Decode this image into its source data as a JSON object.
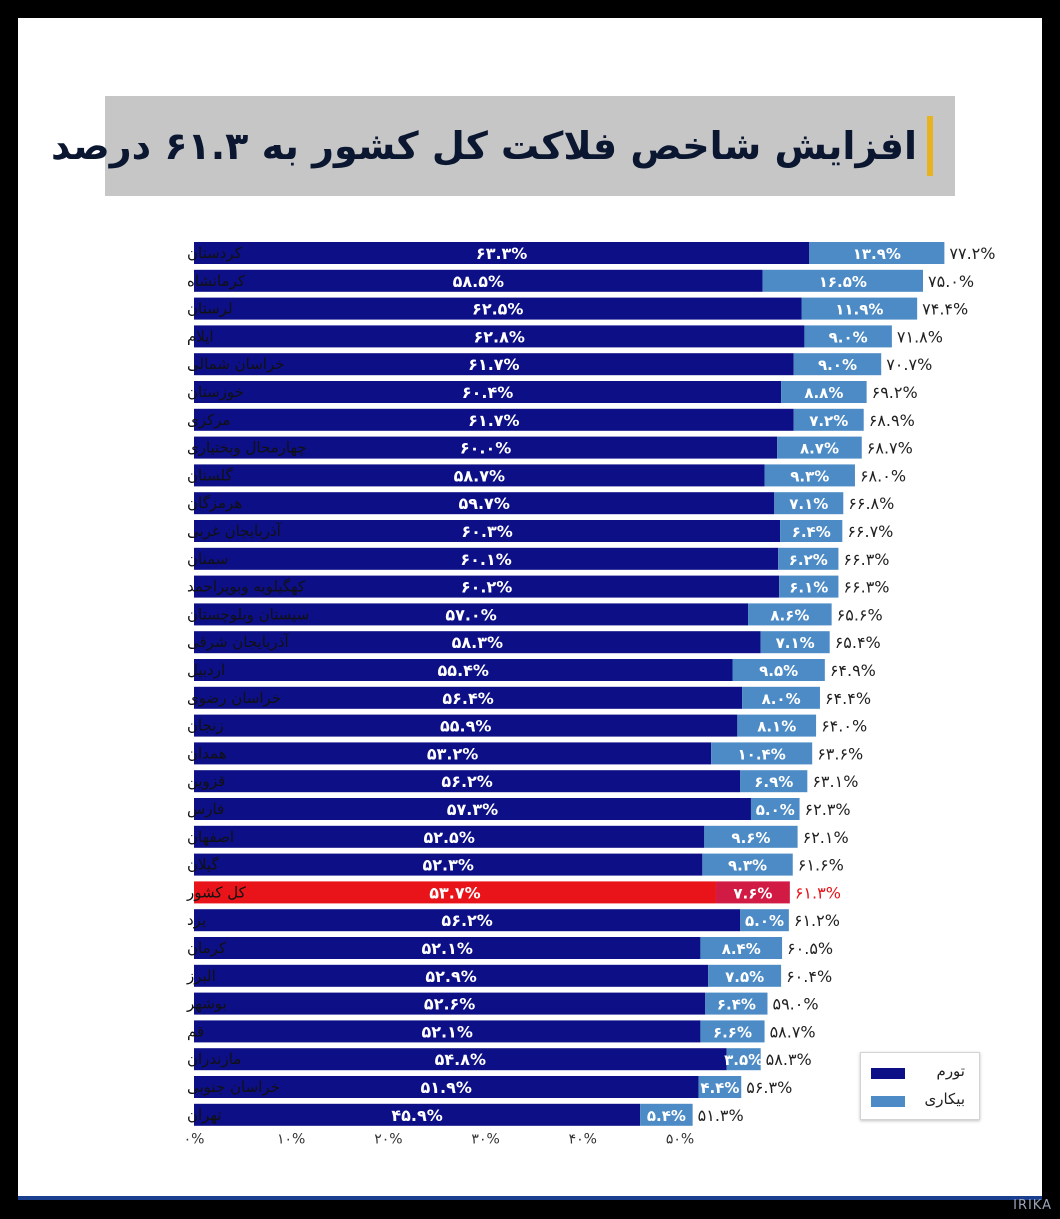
{
  "title": "افزایش شاخص فلاکت کل کشور به ۶۱.۳ درصد",
  "watermark": "IRIKA",
  "colors": {
    "inflation": "#0d0f86",
    "unemployment": "#4d8bc6",
    "highlight_inflation": "#e8141a",
    "highlight_unemployment": "#d11b45",
    "highlight_total": "#e8141a",
    "title_accent": "#e7b321",
    "title_bg": "#c6c6c6"
  },
  "chart_data": {
    "type": "bar",
    "orientation": "horizontal",
    "stacked": true,
    "highlight_category": "کل کشور",
    "categories": [
      "کردستان",
      "کرمانشاه",
      "لرستان",
      "ایلام",
      "خراسان شمالی",
      "خوزستان",
      "مرکزی",
      "چهارمحال وبختیاری",
      "گلستان",
      "هرمزگان",
      "آذربایجان غربی",
      "سمنان",
      "کهگیلویه وبویراحمد",
      "سیستان وبلوچستان",
      "آذربایجان شرقی",
      "اردبیل",
      "خراسان رضوی",
      "زنجان",
      "همدان",
      "قزوین",
      "فارس",
      "اصفهان",
      "گیلان",
      "کل کشور",
      "یزد",
      "کرمان",
      "البرز",
      "بوشهر",
      "قم",
      "مازندران",
      "خراسان جنوبی",
      "تهران"
    ],
    "series": [
      {
        "name": "تورم",
        "values": [
          63.3,
          58.5,
          62.5,
          62.8,
          61.7,
          60.4,
          61.7,
          60.0,
          58.7,
          59.7,
          60.3,
          60.1,
          60.2,
          57.0,
          58.3,
          55.4,
          56.4,
          55.9,
          53.2,
          56.2,
          57.3,
          52.5,
          52.3,
          53.7,
          56.2,
          52.1,
          52.9,
          52.6,
          52.1,
          54.8,
          51.9,
          45.9
        ]
      },
      {
        "name": "بیکاری",
        "values": [
          13.9,
          16.5,
          11.9,
          9.0,
          9.0,
          8.8,
          7.2,
          8.7,
          9.3,
          7.1,
          6.4,
          6.2,
          6.1,
          8.6,
          7.1,
          9.5,
          8.0,
          8.1,
          10.4,
          6.9,
          5.0,
          9.6,
          9.3,
          7.6,
          5.0,
          8.4,
          7.5,
          6.4,
          6.6,
          3.5,
          4.4,
          5.4
        ]
      }
    ],
    "totals": [
      77.2,
      75.0,
      74.4,
      71.8,
      70.7,
      69.2,
      68.9,
      68.7,
      68.0,
      66.8,
      66.7,
      66.3,
      66.3,
      65.6,
      65.4,
      64.9,
      64.4,
      64.0,
      63.6,
      63.1,
      62.3,
      62.1,
      61.6,
      61.3,
      61.2,
      60.5,
      60.4,
      59.0,
      58.7,
      58.3,
      56.3,
      51.3
    ],
    "inflation_labels": [
      "۶۳.۳%",
      "۵۸.۵%",
      "۶۲.۵%",
      "۶۲.۸%",
      "۶۱.۷%",
      "۶۰.۴%",
      "۶۱.۷%",
      "۶۰.۰%",
      "۵۸.۷%",
      "۵۹.۷%",
      "۶۰.۳%",
      "۶۰.۱%",
      "۶۰.۲%",
      "۵۷.۰%",
      "۵۸.۳%",
      "۵۵.۴%",
      "۵۶.۴%",
      "۵۵.۹%",
      "۵۳.۲%",
      "۵۶.۲%",
      "۵۷.۳%",
      "۵۲.۵%",
      "۵۲.۳%",
      "۵۳.۷%",
      "۵۶.۲%",
      "۵۲.۱%",
      "۵۲.۹%",
      "۵۲.۶%",
      "۵۲.۱%",
      "۵۴.۸%",
      "۵۱.۹%",
      "۴۵.۹%"
    ],
    "unemployment_labels": [
      "۱۳.۹%",
      "۱۶.۵%",
      "۱۱.۹%",
      "۹.۰%",
      "۹.۰%",
      "۸.۸%",
      "۷.۲%",
      "۸.۷%",
      "۹.۳%",
      "۷.۱%",
      "۶.۴%",
      "۶.۲%",
      "۶.۱%",
      "۸.۶%",
      "۷.۱%",
      "۹.۵%",
      "۸.۰%",
      "۸.۱%",
      "۱۰.۴%",
      "۶.۹%",
      "۵.۰%",
      "۹.۶%",
      "۹.۳%",
      "۷.۶%",
      "۵.۰%",
      "۸.۴%",
      "۷.۵%",
      "۶.۴%",
      "۶.۶%",
      "۳.۵%",
      "۴.۴%",
      "۵.۴%"
    ],
    "total_labels": [
      "۷۷.۲%",
      "۷۵.۰%",
      "۷۴.۴%",
      "۷۱.۸%",
      "۷۰.۷%",
      "۶۹.۲%",
      "۶۸.۹%",
      "۶۸.۷%",
      "۶۸.۰%",
      "۶۶.۸%",
      "۶۶.۷%",
      "۶۶.۳%",
      "۶۶.۳%",
      "۶۵.۶%",
      "۶۵.۴%",
      "۶۴.۹%",
      "۶۴.۴%",
      "۶۴.۰%",
      "۶۳.۶%",
      "۶۳.۱%",
      "۶۲.۳%",
      "۶۲.۱%",
      "۶۱.۶%",
      "۶۱.۳%",
      "۶۱.۲%",
      "۶۰.۵%",
      "۶۰.۴%",
      "۵۹.۰%",
      "۵۸.۷%",
      "۵۸.۳%",
      "۵۶.۳%",
      "۵۱.۳%"
    ],
    "x_ticks": [
      0,
      10,
      20,
      30,
      40,
      50
    ],
    "x_tick_labels": [
      "۰%",
      "۱۰%",
      "۲۰%",
      "۳۰%",
      "۴۰%",
      "۵۰%"
    ],
    "xlim": [
      0,
      77.2
    ],
    "legend": {
      "position": "bottom-right",
      "entries": [
        "تورم",
        "بیکاری"
      ]
    }
  }
}
